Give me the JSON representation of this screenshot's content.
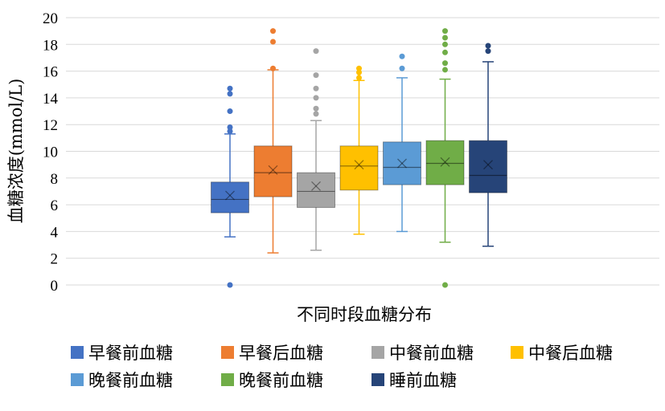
{
  "chart_data": {
    "type": "box",
    "xlabel": "不同时段血糖分布",
    "ylabel": "血糖浓度(mmol/L)",
    "ylim": [
      0,
      20
    ],
    "yticks": [
      0,
      2,
      4,
      6,
      8,
      10,
      12,
      14,
      16,
      18,
      20
    ],
    "grid": true,
    "legend_position": "bottom",
    "series": [
      {
        "name": "早餐前血糖",
        "color": "#4472C4",
        "whisker_low": 3.6,
        "q1": 5.4,
        "median": 6.4,
        "q3": 7.7,
        "whisker_high": 11.3,
        "mean": 6.7,
        "outliers": [
          0,
          11.5,
          11.8,
          13.0,
          14.3,
          14.7
        ]
      },
      {
        "name": "早餐后血糖",
        "color": "#ED7D31",
        "whisker_low": 2.4,
        "q1": 6.6,
        "median": 8.4,
        "q3": 10.4,
        "whisker_high": 16.1,
        "mean": 8.6,
        "outliers": [
          16.2,
          18.2,
          19.0
        ]
      },
      {
        "name": "中餐前血糖",
        "color": "#A5A5A5",
        "whisker_low": 2.6,
        "q1": 5.8,
        "median": 7.0,
        "q3": 8.4,
        "whisker_high": 12.3,
        "mean": 7.4,
        "outliers": [
          12.8,
          13.2,
          14.0,
          14.7,
          15.7,
          17.5
        ]
      },
      {
        "name": "中餐后血糖",
        "color": "#FFC000",
        "whisker_low": 3.8,
        "q1": 7.1,
        "median": 8.9,
        "q3": 10.4,
        "whisker_high": 15.3,
        "mean": 9.0,
        "outliers": [
          15.5,
          15.9,
          16.2
        ]
      },
      {
        "name": "晚餐前血糖",
        "color": "#5B9BD5",
        "whisker_low": 4.0,
        "q1": 7.5,
        "median": 8.8,
        "q3": 10.7,
        "whisker_high": 15.5,
        "mean": 9.1,
        "outliers": [
          16.2,
          17.1
        ]
      },
      {
        "name": "晚餐前血糖",
        "color": "#70AD47",
        "whisker_low": 3.2,
        "q1": 7.5,
        "median": 9.1,
        "q3": 10.8,
        "whisker_high": 15.4,
        "mean": 9.2,
        "outliers": [
          0,
          16.1,
          16.6,
          17.4,
          18.0,
          18.5,
          19.0
        ]
      },
      {
        "name": "睡前血糖",
        "color": "#264478",
        "whisker_low": 2.9,
        "q1": 6.9,
        "median": 8.2,
        "q3": 10.8,
        "whisker_high": 16.7,
        "mean": 9.0,
        "outliers": [
          17.5,
          17.9
        ]
      }
    ]
  }
}
